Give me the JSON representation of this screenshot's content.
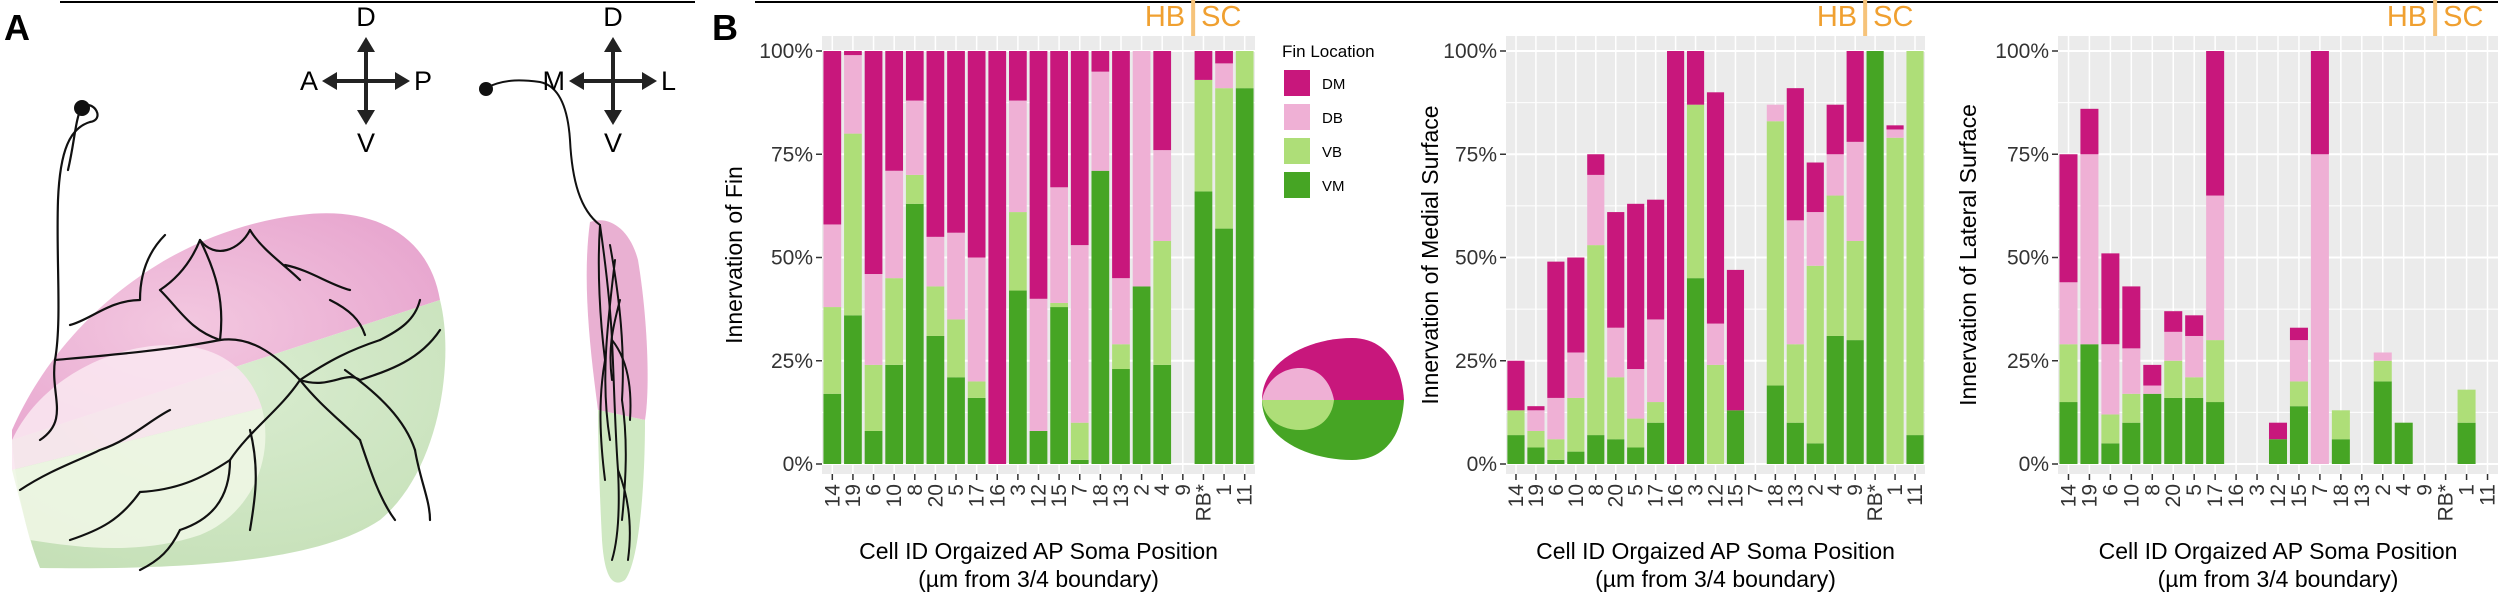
{
  "panels": {
    "a": "A",
    "b": "B"
  },
  "orientation_ap": {
    "d": "D",
    "v": "V",
    "a": "A",
    "p": "P"
  },
  "orientation_ml": {
    "d": "D",
    "v": "V",
    "m": "M",
    "l": "L"
  },
  "colors": {
    "DM": "#c8177c",
    "DB": "#efb0d5",
    "VB": "#aede78",
    "VM": "#46a524",
    "panel_bg": "#ebebeb",
    "region_line": "#f6c37a",
    "region_text": "#f0a030"
  },
  "legend": {
    "title": "Fin Location",
    "entries": [
      {
        "key": "DM",
        "label": "DM"
      },
      {
        "key": "DB",
        "label": "DB"
      },
      {
        "key": "VB",
        "label": "VB"
      },
      {
        "key": "VM",
        "label": "VM"
      }
    ]
  },
  "chart_data": [
    {
      "type": "bar",
      "stacked": true,
      "title": "",
      "regions": [
        "HB",
        "SC"
      ],
      "ylabel": "Innervation of Fin",
      "xlabel": "Cell ID Orgaized AP Soma Position",
      "xlabel2": "(µm from 3/4 boundary)",
      "ylim": [
        0,
        100
      ],
      "yticks": [
        "0%",
        "25%",
        "50%",
        "75%",
        "100%"
      ],
      "categories": [
        "14",
        "19",
        "6",
        "10",
        "8",
        "20",
        "5",
        "17",
        "16",
        "3",
        "12",
        "15",
        "7",
        "18",
        "13",
        "2",
        "4",
        "9",
        "RB*",
        "1",
        "11"
      ],
      "series": [
        {
          "name": "VM",
          "values": [
            17,
            36,
            8,
            24,
            63,
            31,
            21,
            16,
            0,
            42,
            8,
            38,
            1,
            71,
            23,
            43,
            24,
            0,
            66,
            57,
            91
          ]
        },
        {
          "name": "VB",
          "values": [
            21,
            44,
            16,
            21,
            7,
            12,
            14,
            4,
            0,
            19,
            0,
            1,
            9,
            0,
            6,
            0,
            30,
            0,
            27,
            34,
            9
          ]
        },
        {
          "name": "DB",
          "values": [
            20,
            19,
            22,
            26,
            18,
            12,
            21,
            30,
            0,
            27,
            32,
            28,
            43,
            24,
            16,
            57,
            22,
            0,
            0,
            6,
            0
          ]
        },
        {
          "name": "DM",
          "values": [
            42,
            1,
            54,
            29,
            12,
            45,
            44,
            50,
            100,
            12,
            60,
            33,
            47,
            5,
            55,
            0,
            24,
            0,
            7,
            3,
            0
          ]
        }
      ]
    },
    {
      "type": "bar",
      "stacked": true,
      "title": "",
      "regions": [
        "HB",
        "SC"
      ],
      "ylabel": "Innervation of Medial Surface",
      "xlabel": "Cell ID Orgaized AP Soma Position",
      "xlabel2": "(µm from 3/4 boundary)",
      "ylim": [
        0,
        100
      ],
      "yticks": [
        "0%",
        "25%",
        "50%",
        "75%",
        "100%"
      ],
      "categories": [
        "14",
        "19",
        "6",
        "10",
        "8",
        "20",
        "5",
        "17",
        "16",
        "3",
        "12",
        "15",
        "7",
        "18",
        "13",
        "2",
        "4",
        "9",
        "RB*",
        "1",
        "11"
      ],
      "series": [
        {
          "name": "VM",
          "values": [
            7,
            4,
            1,
            3,
            7,
            6,
            4,
            10,
            0,
            45,
            0,
            13,
            0,
            19,
            10,
            5,
            31,
            30,
            100,
            0,
            7
          ]
        },
        {
          "name": "VB",
          "values": [
            6,
            4,
            5,
            13,
            46,
            15,
            7,
            5,
            0,
            42,
            24,
            0,
            0,
            64,
            19,
            43,
            34,
            24,
            0,
            79,
            93
          ]
        },
        {
          "name": "DB",
          "values": [
            0,
            5,
            10,
            11,
            17,
            12,
            12,
            20,
            0,
            0,
            10,
            0,
            0,
            4,
            30,
            13,
            10,
            24,
            0,
            2,
            0
          ]
        },
        {
          "name": "DM",
          "values": [
            12,
            1,
            33,
            23,
            5,
            28,
            40,
            29,
            100,
            13,
            56,
            34,
            0,
            0,
            32,
            12,
            12,
            22,
            0,
            1,
            0
          ]
        }
      ]
    },
    {
      "type": "bar",
      "stacked": true,
      "title": "",
      "regions": [
        "HB",
        "SC"
      ],
      "ylabel": "Innervation of Lateral Surface",
      "xlabel": "Cell ID Orgaized AP Soma Position",
      "xlabel2": "(µm from 3/4 boundary)",
      "ylim": [
        0,
        100
      ],
      "yticks": [
        "0%",
        "25%",
        "50%",
        "75%",
        "100%"
      ],
      "categories": [
        "14",
        "19",
        "6",
        "10",
        "8",
        "20",
        "5",
        "17",
        "16",
        "3",
        "12",
        "15",
        "7",
        "18",
        "13",
        "2",
        "4",
        "9",
        "RB*",
        "1",
        "11"
      ],
      "series": [
        {
          "name": "VM",
          "values": [
            15,
            29,
            5,
            10,
            17,
            16,
            16,
            15,
            0,
            0,
            6,
            14,
            0,
            6,
            0,
            20,
            10,
            0,
            0,
            10,
            0
          ]
        },
        {
          "name": "VB",
          "values": [
            14,
            0,
            7,
            7,
            0,
            9,
            5,
            15,
            0,
            0,
            0,
            6,
            0,
            7,
            0,
            5,
            0,
            0,
            0,
            8,
            0
          ]
        },
        {
          "name": "DB",
          "values": [
            15,
            46,
            17,
            11,
            2,
            7,
            10,
            35,
            0,
            0,
            0,
            10,
            75,
            0,
            0,
            2,
            0,
            0,
            0,
            0,
            0
          ]
        },
        {
          "name": "DM",
          "values": [
            31,
            11,
            22,
            15,
            5,
            5,
            5,
            35,
            0,
            0,
            4,
            3,
            25,
            0,
            0,
            0,
            0,
            0,
            0,
            0,
            0
          ]
        }
      ]
    }
  ]
}
